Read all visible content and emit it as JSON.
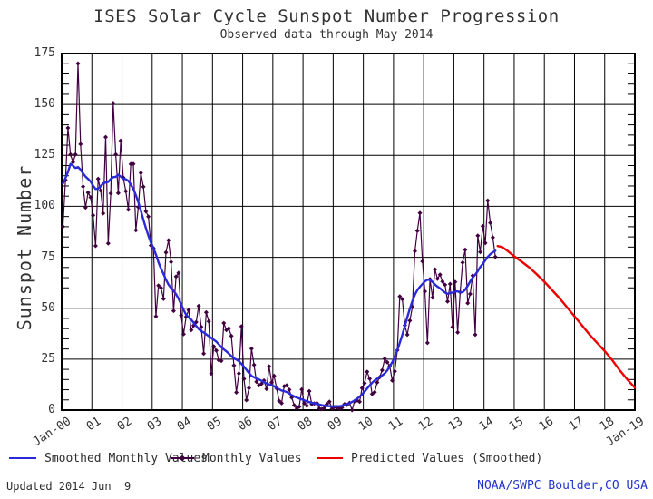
{
  "header": {
    "title": "ISES Solar Cycle Sunspot Number Progression",
    "subtitle": "Observed data through May 2014"
  },
  "footer": {
    "updated": "Updated 2014 Jun  9",
    "credit": "NOAA/SWPC Boulder,CO USA",
    "credit_color": "#2233cc"
  },
  "colors": {
    "grid": "#000000",
    "frame": "#000000",
    "monthly": "#400040",
    "smoothed": "#2a2ad8",
    "predicted": "#ee0000",
    "text": "#333333"
  },
  "legend": [
    {
      "label": "Smoothed Monthly Values",
      "color": "#2a2ad8",
      "marker": "none",
      "line_width": 30
    },
    {
      "label": "Monthly Values",
      "color": "#400040",
      "marker": "diamond",
      "line_width": 26
    },
    {
      "label": "Predicted Values (Smoothed)",
      "color": "#ee0000",
      "marker": "none",
      "line_width": 28
    }
  ],
  "chart_data": {
    "type": "line",
    "title": "ISES Solar Cycle Sunspot Number Progression",
    "subtitle": "Observed data through May 2014",
    "xlabel": "",
    "ylabel": "Sunspot Number",
    "ylim": [
      0,
      175
    ],
    "yticks": [
      0,
      25,
      50,
      75,
      100,
      125,
      150,
      175
    ],
    "y_minor_tick_step": 5,
    "x_years": [
      2000,
      2019
    ],
    "grid": true,
    "legend_position": "bottom",
    "xticks": [
      {
        "year": 2000,
        "label": "Jan-00"
      },
      {
        "year": 2001,
        "label": "01"
      },
      {
        "year": 2002,
        "label": "02"
      },
      {
        "year": 2003,
        "label": "03"
      },
      {
        "year": 2004,
        "label": "04"
      },
      {
        "year": 2005,
        "label": "05"
      },
      {
        "year": 2006,
        "label": "06"
      },
      {
        "year": 2007,
        "label": "07"
      },
      {
        "year": 2008,
        "label": "08"
      },
      {
        "year": 2009,
        "label": "09"
      },
      {
        "year": 2010,
        "label": "10"
      },
      {
        "year": 2011,
        "label": "11"
      },
      {
        "year": 2012,
        "label": "12"
      },
      {
        "year": 2013,
        "label": "13"
      },
      {
        "year": 2014,
        "label": "14"
      },
      {
        "year": 2015,
        "label": "15"
      },
      {
        "year": 2016,
        "label": "16"
      },
      {
        "year": 2017,
        "label": "17"
      },
      {
        "year": 2018,
        "label": "18"
      },
      {
        "year": 2019,
        "label": "Jan-19"
      }
    ],
    "series": [
      {
        "name": "Monthly Values",
        "style": "line+marker",
        "marker": "diamond",
        "color": "#400040",
        "start_year": 2000,
        "start_month": 1,
        "cadence": "monthly",
        "values": [
          90.1,
          112.9,
          138.5,
          125.5,
          121.6,
          125.5,
          170.1,
          130.5,
          109.7,
          99.4,
          106.8,
          104.4,
          95.6,
          80.6,
          113.5,
          107.7,
          96.6,
          134.0,
          81.8,
          106.4,
          150.7,
          125.5,
          106.5,
          132.2,
          114.1,
          107.4,
          98.4,
          120.7,
          120.8,
          88.3,
          99.6,
          116.4,
          109.6,
          97.5,
          95.0,
          80.8,
          79.5,
          46.0,
          61.1,
          60.0,
          54.6,
          77.4,
          83.3,
          72.7,
          48.7,
          65.5,
          67.3,
          46.5,
          37.3,
          45.8,
          49.1,
          39.3,
          41.5,
          43.2,
          51.1,
          40.9,
          27.7,
          48.0,
          43.5,
          17.9,
          31.3,
          29.2,
          24.5,
          24.2,
          42.7,
          39.3,
          40.1,
          36.4,
          21.9,
          8.7,
          18.0,
          41.1,
          15.3,
          4.9,
          10.8,
          30.2,
          22.2,
          13.9,
          12.2,
          12.9,
          14.5,
          10.4,
          21.4,
          13.6,
          16.8,
          10.7,
          4.5,
          3.4,
          11.7,
          12.1,
          10.0,
          6.2,
          2.4,
          0.9,
          1.7,
          10.1,
          3.4,
          2.1,
          9.3,
          2.9,
          3.2,
          3.4,
          0.8,
          0.5,
          1.1,
          2.9,
          4.1,
          0.8,
          1.5,
          1.4,
          0.7,
          1.2,
          2.9,
          2.6,
          3.5,
          0.0,
          4.3,
          4.8,
          4.1,
          10.8,
          13.2,
          18.8,
          15.4,
          7.9,
          8.8,
          13.6,
          16.1,
          19.6,
          25.2,
          23.5,
          21.6,
          14.5,
          19.0,
          29.4,
          55.8,
          54.4,
          41.6,
          37.0,
          43.9,
          50.6,
          78.0,
          88.0,
          96.7,
          73.0,
          58.3,
          33.0,
          64.2,
          55.2,
          69.0,
          64.5,
          66.5,
          63.1,
          61.5,
          53.3,
          61.9,
          40.8,
          62.9,
          38.1,
          57.9,
          72.4,
          78.7,
          52.5,
          57.0,
          66.0,
          37.0,
          85.6,
          77.6,
          90.3,
          82.0,
          102.8,
          91.9,
          84.7,
          75.2
        ]
      },
      {
        "name": "Smoothed Monthly Values",
        "style": "line",
        "color": "#2a2ad8",
        "start_year": 2000,
        "start_month": 1,
        "cadence": "monthly",
        "values": [
          111.2,
          113.9,
          116.8,
          120.8,
          119.9,
          118.8,
          119.3,
          118.0,
          116.1,
          114.6,
          113.4,
          112.2,
          110.1,
          108.5,
          108.7,
          109.8,
          111.3,
          111.7,
          112.0,
          113.4,
          114.3,
          114.5,
          115.5,
          114.6,
          113.5,
          113.3,
          112.5,
          110.8,
          108.5,
          105.5,
          102.0,
          97.9,
          93.4,
          89.3,
          85.6,
          82.2,
          79.5,
          76.4,
          72.6,
          69.4,
          66.8,
          64.0,
          61.6,
          59.9,
          58.5,
          56.9,
          54.6,
          52.0,
          49.2,
          46.8,
          45.5,
          44.4,
          42.9,
          41.3,
          39.8,
          38.8,
          38.1,
          37.2,
          36.3,
          35.4,
          34.5,
          33.6,
          32.3,
          30.9,
          29.8,
          28.8,
          27.7,
          26.5,
          25.4,
          24.8,
          24.0,
          22.7,
          21.3,
          19.8,
          18.2,
          16.8,
          16.1,
          15.5,
          15.0,
          14.4,
          13.7,
          13.1,
          12.6,
          12.2,
          11.7,
          11.0,
          10.2,
          9.6,
          9.3,
          8.9,
          8.1,
          7.3,
          6.7,
          6.2,
          5.7,
          5.3,
          4.8,
          4.3,
          3.9,
          3.6,
          3.3,
          3.0,
          2.7,
          2.4,
          2.2,
          2.0,
          1.9,
          1.8,
          1.8,
          1.9,
          1.9,
          2.1,
          2.5,
          2.9,
          3.4,
          4.0,
          4.7,
          5.6,
          6.6,
          7.7,
          9.1,
          10.6,
          12.1,
          13.4,
          14.5,
          15.4,
          16.2,
          17.0,
          18.0,
          19.5,
          21.4,
          23.5,
          26.0,
          29.4,
          33.0,
          36.9,
          41.2,
          45.6,
          49.8,
          53.5,
          56.7,
          58.9,
          60.5,
          61.9,
          63.2,
          64.0,
          63.9,
          62.9,
          61.6,
          60.6,
          59.8,
          58.7,
          57.7,
          57.1,
          57.4,
          57.7,
          58.2,
          58.3,
          57.8,
          57.9,
          59.1,
          61.0,
          63.1,
          65.0,
          66.5,
          68.2,
          70.2,
          71.8,
          73.5,
          75.2,
          76.5,
          77.5,
          78.2
        ]
      },
      {
        "name": "Predicted Values (Smoothed)",
        "style": "line",
        "color": "#ee0000",
        "points": [
          [
            2014.45,
            80.5
          ],
          [
            2014.6,
            80.0
          ],
          [
            2014.75,
            78.5
          ],
          [
            2015.0,
            75.5
          ],
          [
            2015.25,
            72.8
          ],
          [
            2015.5,
            70.0
          ],
          [
            2015.75,
            66.6
          ],
          [
            2016.0,
            63.0
          ],
          [
            2016.25,
            59.0
          ],
          [
            2016.5,
            55.0
          ],
          [
            2016.75,
            50.5
          ],
          [
            2017.0,
            46.0
          ],
          [
            2017.25,
            41.5
          ],
          [
            2017.5,
            37.0
          ],
          [
            2017.75,
            33.0
          ],
          [
            2018.0,
            29.0
          ],
          [
            2018.25,
            24.5
          ],
          [
            2018.5,
            19.5
          ],
          [
            2018.75,
            15.0
          ],
          [
            2019.0,
            11.0
          ]
        ]
      }
    ]
  }
}
